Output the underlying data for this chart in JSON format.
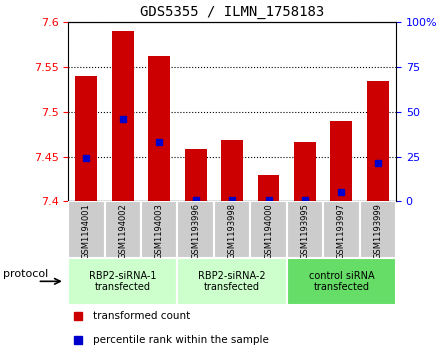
{
  "title": "GDS5355 / ILMN_1758183",
  "samples": [
    "GSM1194001",
    "GSM1194002",
    "GSM1194003",
    "GSM1193996",
    "GSM1193998",
    "GSM1194000",
    "GSM1193995",
    "GSM1193997",
    "GSM1193999"
  ],
  "red_values": [
    7.54,
    7.59,
    7.562,
    7.458,
    7.468,
    7.43,
    7.466,
    7.49,
    7.534
  ],
  "blue_values": [
    7.448,
    7.492,
    7.466,
    7.402,
    7.402,
    7.402,
    7.402,
    7.41,
    7.443
  ],
  "ylim": [
    7.4,
    7.6
  ],
  "yticks": [
    7.4,
    7.45,
    7.5,
    7.55,
    7.6
  ],
  "ytick_labels": [
    "7.4",
    "7.45",
    "7.5",
    "7.55",
    "7.6"
  ],
  "right_yticks": [
    0,
    25,
    50,
    75,
    100
  ],
  "right_ytick_labels": [
    "0",
    "25",
    "50",
    "75",
    "100%"
  ],
  "right_ylim": [
    0,
    100
  ],
  "groups": [
    {
      "label": "RBP2-siRNA-1\ntransfected",
      "start": 0,
      "end": 2,
      "color": "#ccffcc"
    },
    {
      "label": "RBP2-siRNA-2\ntransfected",
      "start": 3,
      "end": 5,
      "color": "#ccffcc"
    },
    {
      "label": "control siRNA\ntransfected",
      "start": 6,
      "end": 8,
      "color": "#66dd66"
    }
  ],
  "bar_bottom": 7.4,
  "bar_width": 0.6,
  "red_color": "#cc0000",
  "blue_color": "#0000cc",
  "bg_color": "#cccccc",
  "protocol_label": "protocol"
}
